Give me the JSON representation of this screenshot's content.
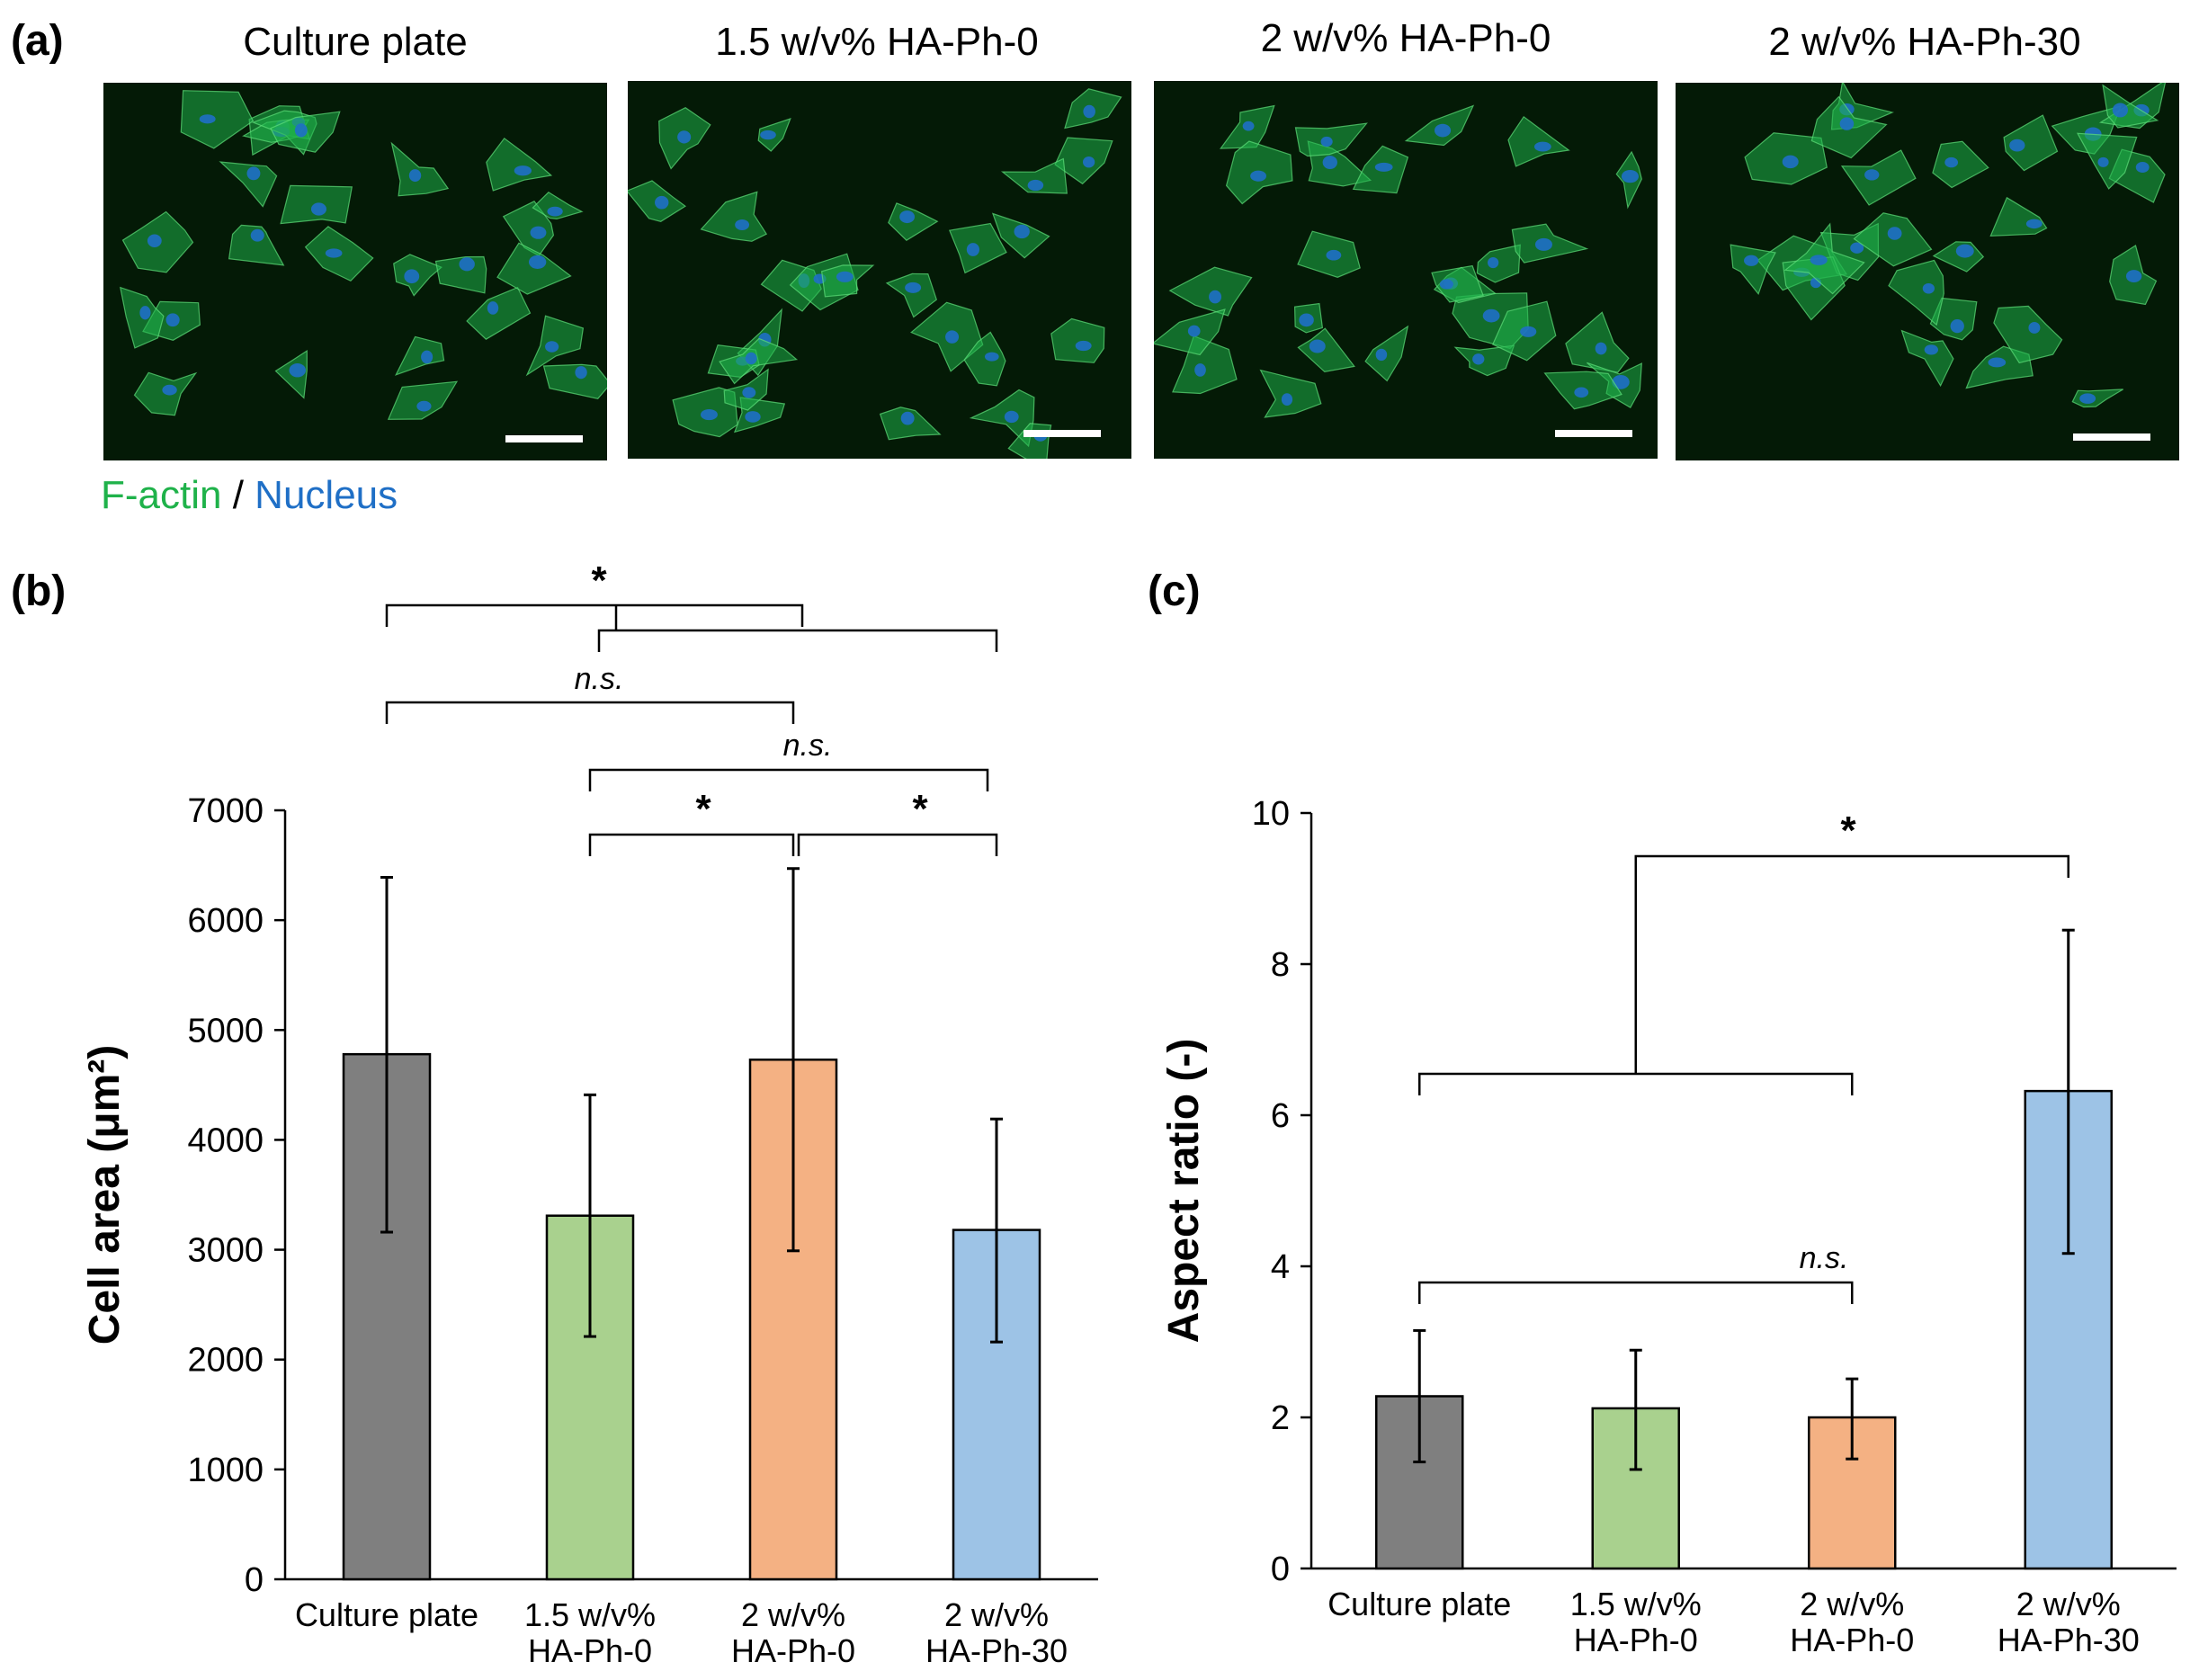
{
  "panels": {
    "a": "(a)",
    "b": "(b)",
    "c": "(c)"
  },
  "micrographs": {
    "titles": [
      "Culture plate",
      "1.5 w/v% HA-Ph-0",
      "2 w/v% HA-Ph-0",
      "2 w/v% HA-Ph-30"
    ],
    "stain_legend": {
      "factin": "F-actin",
      "separator": " / ",
      "nucleus": "Nucleus"
    },
    "colors": {
      "factin": "#1fb24a",
      "nucleus": "#1f6fc6",
      "background": "#041a06"
    }
  },
  "chart_data": [
    {
      "type": "bar",
      "panel": "(b)",
      "categories": [
        "Culture plate",
        "1.5 w/v%\nHA-Ph-0",
        "2 w/v%\nHA-Ph-0",
        "2 w/v%\nHA-Ph-30"
      ],
      "values": [
        4780,
        3310,
        4730,
        3180
      ],
      "error_low": [
        3160,
        2210,
        2990,
        2160
      ],
      "error_high": [
        6390,
        4410,
        6470,
        4190
      ],
      "colors": [
        "#7f7f7f",
        "#a9d18e",
        "#f4b183",
        "#9dc3e6"
      ],
      "ylabel": "Cell area (μm²)",
      "ylim": [
        0,
        7000
      ],
      "yticks": [
        0,
        1000,
        2000,
        3000,
        4000,
        5000,
        6000,
        7000
      ],
      "grid": false,
      "significance": [
        {
          "label": "*",
          "type": "group-vs-group",
          "left": [
            0,
            2
          ],
          "right": [
            1,
            3
          ]
        },
        {
          "label": "n.s.",
          "groups": [
            0,
            2
          ]
        },
        {
          "label": "n.s.",
          "groups": [
            1,
            3
          ]
        },
        {
          "label": "*",
          "groups": [
            1,
            2
          ]
        },
        {
          "label": "*",
          "groups": [
            2,
            3
          ]
        }
      ]
    },
    {
      "type": "bar",
      "panel": "(c)",
      "categories": [
        "Culture plate",
        "1.5 w/v%\nHA-Ph-0",
        "2 w/v%\nHA-Ph-0",
        "2 w/v%\nHA-Ph-30"
      ],
      "values": [
        2.28,
        2.12,
        2.0,
        6.32
      ],
      "error_low": [
        1.41,
        1.31,
        1.45,
        4.17
      ],
      "error_high": [
        3.15,
        2.89,
        2.51,
        8.45
      ],
      "colors": [
        "#7f7f7f",
        "#a9d18e",
        "#f4b183",
        "#9dc3e6"
      ],
      "ylabel": "Aspect ratio (-)",
      "ylim": [
        0,
        10
      ],
      "yticks": [
        0,
        2,
        4,
        6,
        8,
        10
      ],
      "grid": false,
      "significance": [
        {
          "label": "*",
          "type": "group-vs-one",
          "left": [
            0,
            2
          ],
          "right": 3
        },
        {
          "label": "n.s.",
          "groups": [
            0,
            2
          ]
        }
      ]
    }
  ]
}
